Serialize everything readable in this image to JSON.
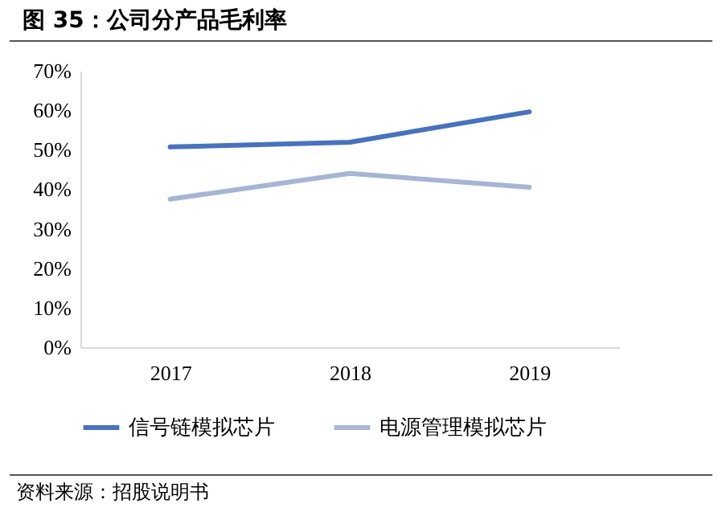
{
  "chart_data": {
    "type": "line",
    "title": "图 35：公司分产品毛利率",
    "categories": [
      "2017",
      "2018",
      "2019"
    ],
    "series": [
      {
        "name": "信号链模拟芯片",
        "color": "#4472c4",
        "values": [
          50.7,
          51.9,
          59.6
        ]
      },
      {
        "name": "电源管理模拟芯片",
        "color": "#a5b5d6",
        "values": [
          37.5,
          44.0,
          40.5
        ]
      }
    ],
    "ylim": [
      0,
      70
    ],
    "yticks": [
      {
        "value": 0,
        "label": "0%"
      },
      {
        "value": 10,
        "label": "10%"
      },
      {
        "value": 20,
        "label": "20%"
      },
      {
        "value": 30,
        "label": "30%"
      },
      {
        "value": 40,
        "label": "40%"
      },
      {
        "value": 50,
        "label": "50%"
      },
      {
        "value": 60,
        "label": "60%"
      },
      {
        "value": 70,
        "label": "70%"
      }
    ],
    "grid": false,
    "legend": "bottom",
    "marker": "none",
    "line_style": "solid",
    "annotations": [
      "资料来源：招股说明书"
    ]
  }
}
